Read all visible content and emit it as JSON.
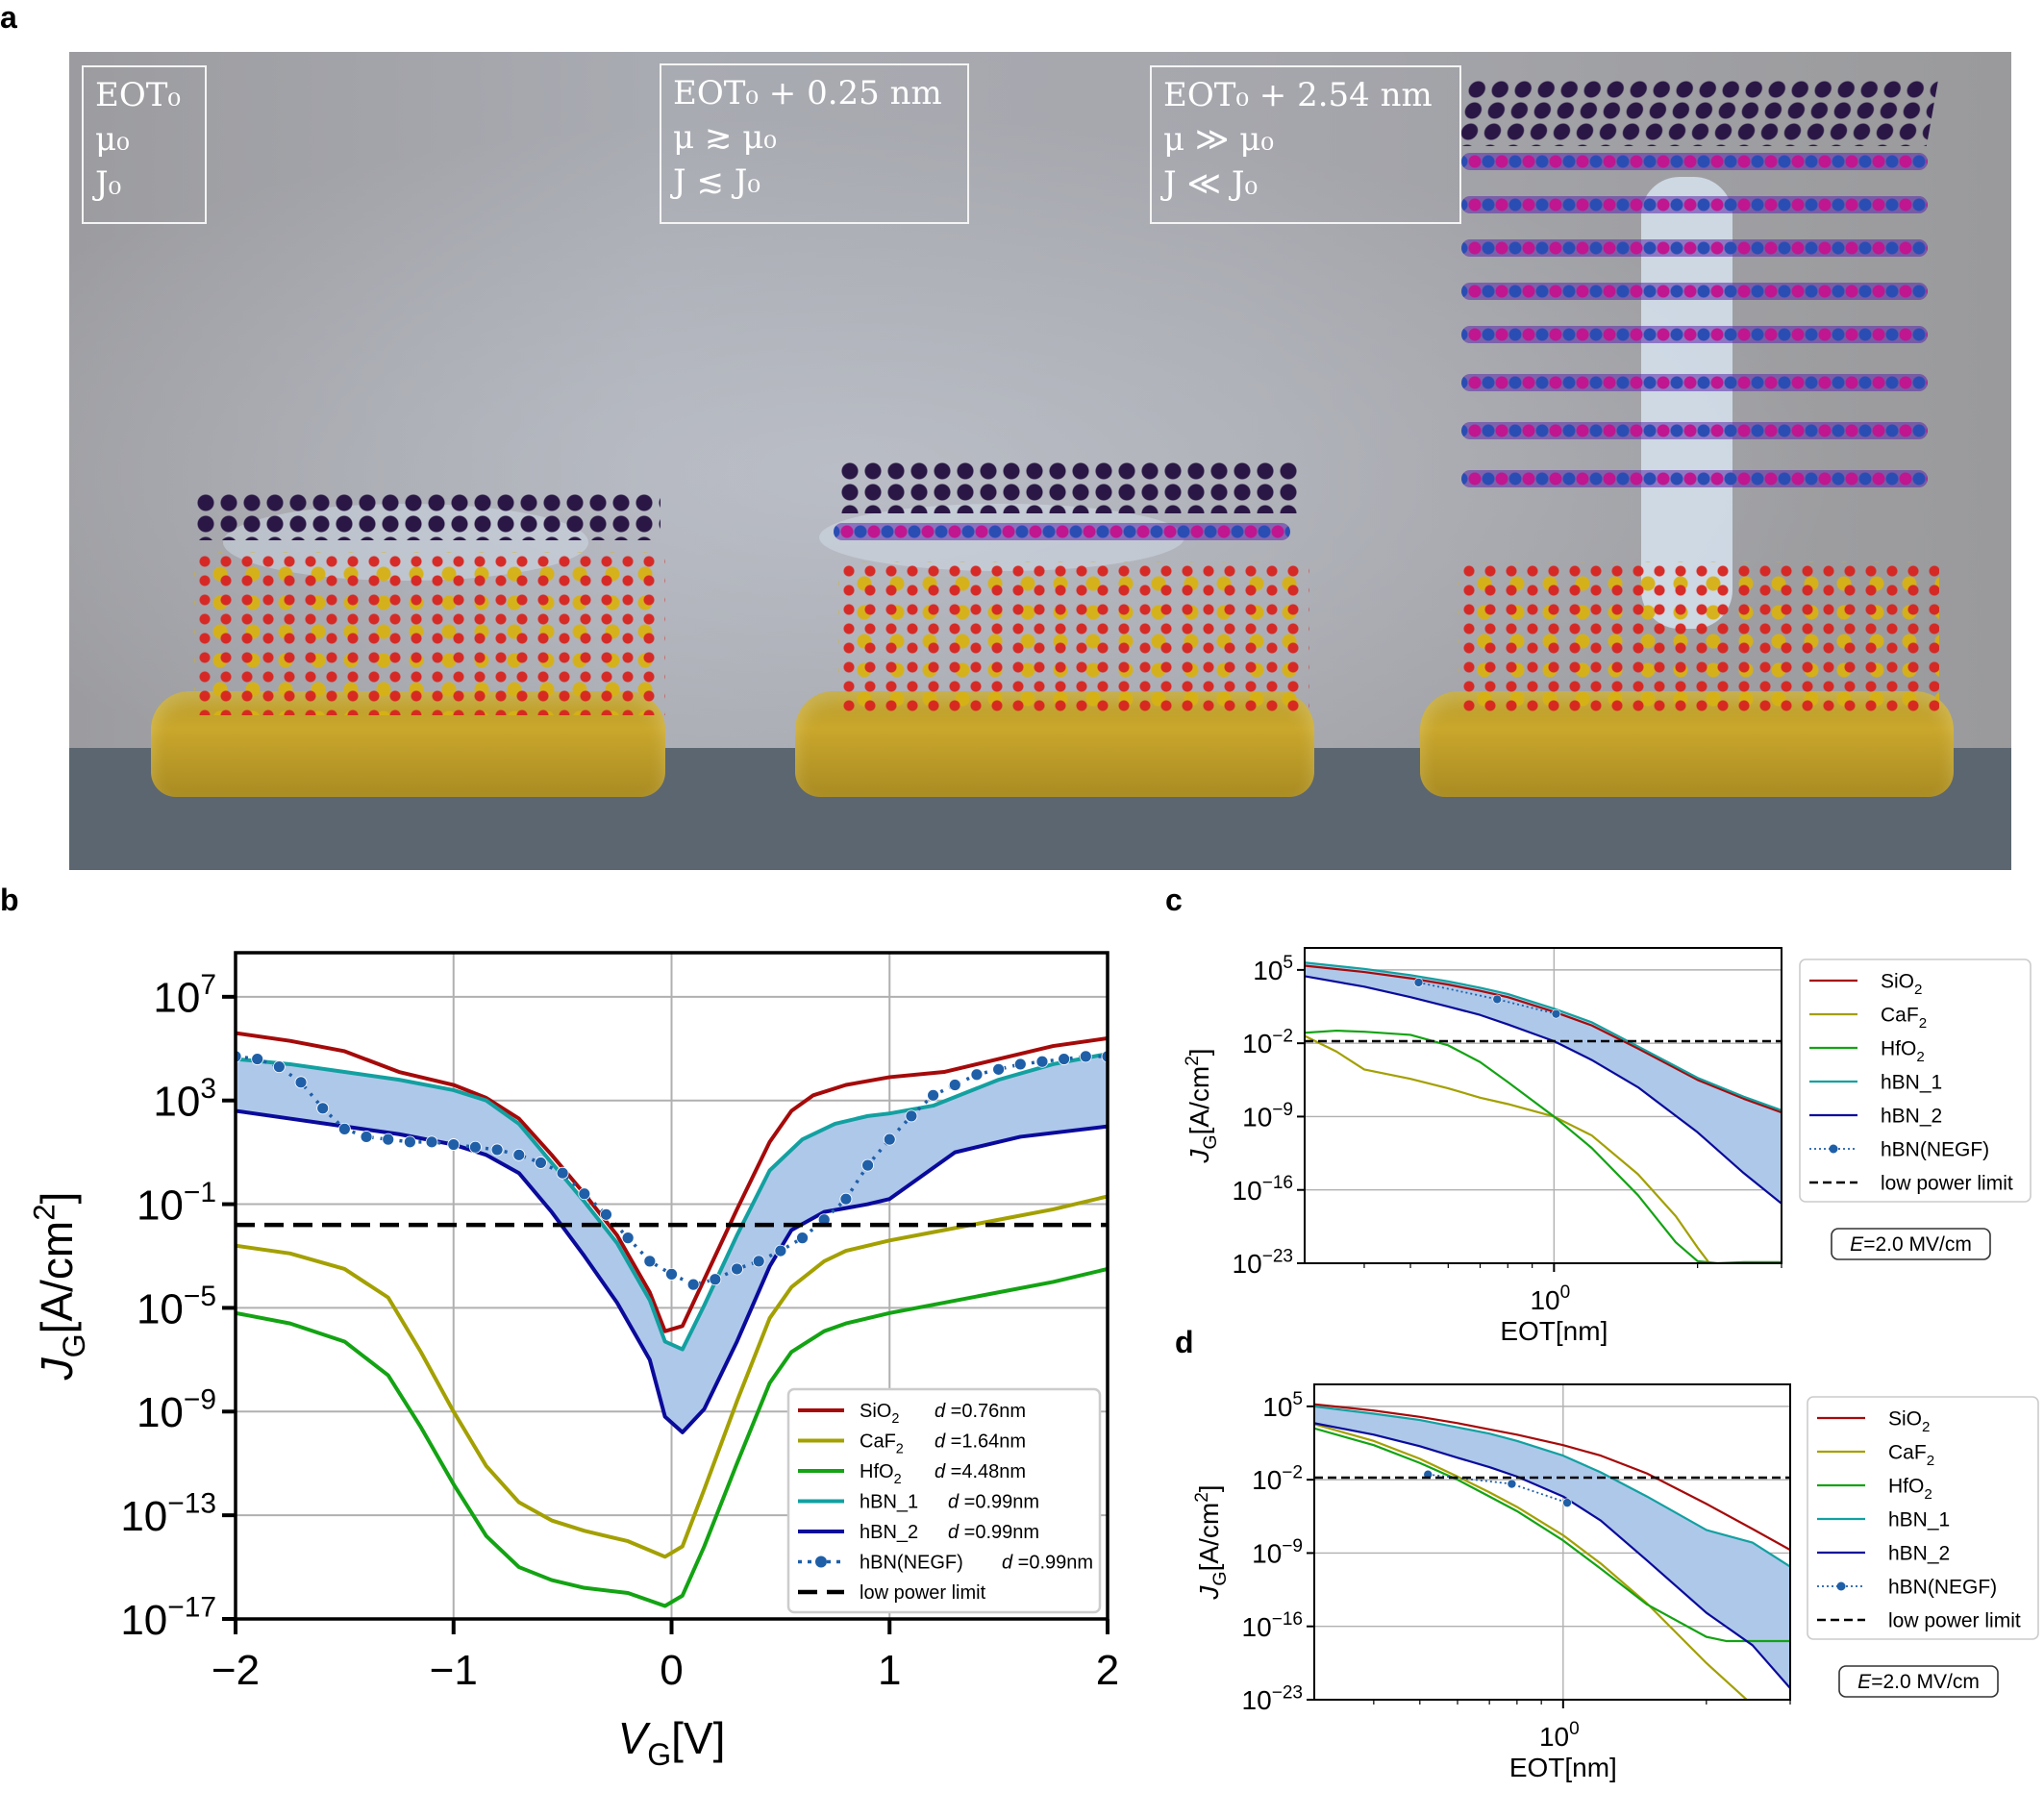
{
  "figure": {
    "panel_labels": [
      "a",
      "b",
      "c",
      "d"
    ]
  },
  "panel_a": {
    "boxes": [
      {
        "line1": "EOT₀",
        "line2": "μ₀",
        "line3": "J₀"
      },
      {
        "line1": "EOT₀ + 0.25 nm",
        "line2": "μ ≳ μ₀",
        "line3": "J ≲ J₀"
      },
      {
        "line1": "EOT₀ + 2.54 nm",
        "line2": "μ ≫ μ₀",
        "line3": "J ≪ J₀"
      }
    ],
    "stacks": [
      {
        "name": "graphene-on-sio2",
        "hbn_layers": 0
      },
      {
        "name": "graphene-hbn1-on-sio2",
        "hbn_layers": 1
      },
      {
        "name": "graphene-hbn8-on-sio2",
        "hbn_layers": 8
      }
    ]
  },
  "colors": {
    "SiO2": "#a50a0a",
    "CaF2": "#a3a000",
    "HfO2": "#13a313",
    "hBN_1": "#13a0a0",
    "hBN_2": "#0a0a9b",
    "NEGF": "#1f5fa8",
    "fill": "#aec8ea",
    "limit": "#000000",
    "grid": "#b0b0b0"
  },
  "chart_data": [
    {
      "id": "b",
      "type": "line",
      "xlabel": "V_G[V]",
      "ylabel": "J_G[A/cm^2]",
      "xlim": [
        -2,
        2
      ],
      "ylim_log10": [
        -17,
        8.7
      ],
      "yscale": "log",
      "grid": true,
      "x_ticks": [
        -2,
        -1,
        0,
        1,
        2
      ],
      "x_tick_labels": [
        "−2",
        "−1",
        "0",
        "1",
        "2"
      ],
      "y_ticks_log10": [
        7,
        3,
        -1,
        -5,
        -9,
        -13,
        -17
      ],
      "y_tick_labels": [
        [
          "10",
          "7"
        ],
        [
          "10",
          "3"
        ],
        [
          "10",
          "−1"
        ],
        [
          "10",
          "−5"
        ],
        [
          "10",
          "−9"
        ],
        [
          "10",
          "−13"
        ],
        [
          "10",
          "−17"
        ]
      ],
      "legend_position": "lower-right",
      "fill_between": [
        "hBN_1",
        "hBN_2"
      ],
      "series": [
        {
          "key": "SiO2",
          "label": "SiO",
          "sub": "2",
          "d": "d =0.76nm",
          "style": "solid",
          "x": [
            -2,
            -1.75,
            -1.5,
            -1.25,
            -1.0,
            -0.85,
            -0.7,
            -0.55,
            -0.4,
            -0.25,
            -0.1,
            -0.03,
            0.05,
            0.15,
            0.3,
            0.45,
            0.55,
            0.65,
            0.8,
            1.0,
            1.25,
            1.5,
            1.75,
            2.0
          ],
          "log10y": [
            5.6,
            5.3,
            4.9,
            4.1,
            3.6,
            3.1,
            2.3,
            0.9,
            -0.6,
            -2.2,
            -4.4,
            -5.9,
            -5.7,
            -3.9,
            -1.2,
            1.4,
            2.6,
            3.2,
            3.6,
            3.9,
            4.1,
            4.6,
            5.1,
            5.4
          ]
        },
        {
          "key": "CaF2",
          "label": "CaF",
          "sub": "2",
          "d": "d =1.64nm",
          "style": "solid",
          "x": [
            -2,
            -1.75,
            -1.5,
            -1.3,
            -1.15,
            -1.0,
            -0.85,
            -0.7,
            -0.55,
            -0.4,
            -0.2,
            -0.03,
            0.05,
            0.15,
            0.3,
            0.45,
            0.55,
            0.7,
            0.8,
            1.0,
            1.25,
            1.5,
            1.75,
            2.0
          ],
          "log10y": [
            -2.6,
            -2.9,
            -3.5,
            -4.6,
            -6.7,
            -9.0,
            -11.1,
            -12.5,
            -13.2,
            -13.6,
            -14.0,
            -14.6,
            -14.2,
            -12.0,
            -8.6,
            -5.4,
            -4.2,
            -3.2,
            -2.8,
            -2.4,
            -2.0,
            -1.6,
            -1.2,
            -0.7
          ]
        },
        {
          "key": "HfO2",
          "label": "HfO",
          "sub": "2",
          "d": "d =4.48nm",
          "style": "solid",
          "x": [
            -2,
            -1.75,
            -1.5,
            -1.3,
            -1.15,
            -1.0,
            -0.85,
            -0.7,
            -0.55,
            -0.4,
            -0.2,
            -0.03,
            0.05,
            0.15,
            0.3,
            0.45,
            0.55,
            0.7,
            0.8,
            1.0,
            1.25,
            1.5,
            1.75,
            2.0
          ],
          "log10y": [
            -5.2,
            -5.6,
            -6.3,
            -7.6,
            -9.6,
            -11.8,
            -13.8,
            -15.0,
            -15.5,
            -15.8,
            -16.0,
            -16.5,
            -16.1,
            -14.2,
            -11.0,
            -7.9,
            -6.7,
            -5.9,
            -5.6,
            -5.2,
            -4.8,
            -4.4,
            -4.0,
            -3.5
          ]
        },
        {
          "key": "hBN_1",
          "label": "hBN_1",
          "sub": "",
          "d": "d =0.99nm",
          "style": "solid",
          "x": [
            -2,
            -1.75,
            -1.5,
            -1.25,
            -1.0,
            -0.85,
            -0.7,
            -0.55,
            -0.4,
            -0.25,
            -0.1,
            -0.03,
            0.05,
            0.15,
            0.3,
            0.45,
            0.6,
            0.75,
            0.9,
            1.0,
            1.2,
            1.5,
            1.75,
            2.0
          ],
          "log10y": [
            4.6,
            4.4,
            4.1,
            3.8,
            3.4,
            3.0,
            2.1,
            0.6,
            -0.9,
            -2.5,
            -4.7,
            -6.3,
            -6.6,
            -4.9,
            -2.2,
            0.3,
            1.5,
            2.1,
            2.4,
            2.5,
            2.8,
            3.8,
            4.4,
            4.8
          ]
        },
        {
          "key": "hBN_2",
          "label": "hBN_2",
          "sub": "",
          "d": "d =0.99nm",
          "style": "solid",
          "x": [
            -2,
            -1.75,
            -1.5,
            -1.25,
            -1.0,
            -0.85,
            -0.7,
            -0.55,
            -0.4,
            -0.25,
            -0.1,
            -0.03,
            0.05,
            0.15,
            0.3,
            0.45,
            0.55,
            0.7,
            0.9,
            1.0,
            1.1,
            1.3,
            1.6,
            2.0
          ],
          "log10y": [
            2.6,
            2.3,
            2.0,
            1.7,
            1.3,
            0.9,
            0.2,
            -1.3,
            -3.0,
            -4.8,
            -7.0,
            -9.2,
            -9.8,
            -8.9,
            -6.3,
            -3.4,
            -2.0,
            -1.3,
            -1.0,
            -0.8,
            -0.2,
            1.0,
            1.6,
            2.0
          ]
        },
        {
          "key": "NEGF",
          "label": "hBN(NEGF)",
          "sub": "",
          "d": "d =0.99nm",
          "style": "dotted-markers",
          "x": [
            -2,
            -1.9,
            -1.8,
            -1.7,
            -1.6,
            -1.5,
            -1.4,
            -1.3,
            -1.2,
            -1.1,
            -1.0,
            -0.9,
            -0.8,
            -0.7,
            -0.6,
            -0.5,
            -0.4,
            -0.3,
            -0.2,
            -0.1,
            0.0,
            0.1,
            0.2,
            0.3,
            0.4,
            0.5,
            0.6,
            0.7,
            0.8,
            0.9,
            1.0,
            1.1,
            1.2,
            1.3,
            1.4,
            1.5,
            1.6,
            1.7,
            1.8,
            1.9,
            2.0
          ],
          "log10y": [
            4.7,
            4.6,
            4.3,
            3.7,
            2.7,
            1.9,
            1.6,
            1.5,
            1.4,
            1.4,
            1.3,
            1.2,
            1.1,
            0.9,
            0.6,
            0.2,
            -0.6,
            -1.4,
            -2.3,
            -3.2,
            -3.7,
            -4.1,
            -3.9,
            -3.5,
            -3.2,
            -2.8,
            -2.3,
            -1.6,
            -0.8,
            0.5,
            1.5,
            2.4,
            3.2,
            3.6,
            4.0,
            4.2,
            4.4,
            4.5,
            4.6,
            4.7,
            4.7
          ]
        },
        {
          "key": "limit",
          "label": "low power limit",
          "sub": "",
          "d": "",
          "style": "dashed",
          "x": [
            -2,
            2
          ],
          "log10y": [
            -1.8,
            -1.8
          ]
        }
      ]
    },
    {
      "id": "c",
      "type": "line",
      "xlabel": "EOT[nm]",
      "ylabel": "J_G[A/cm^2]",
      "xscale": "log",
      "xlim": [
        0.3,
        3.0
      ],
      "x_ticks": [
        1
      ],
      "x_tick_labels": [
        [
          "10",
          "0"
        ]
      ],
      "x_minor_ticks": [
        0.4,
        0.5,
        0.6,
        0.7,
        0.8,
        0.9,
        2,
        3
      ],
      "yscale": "log",
      "ylim_log10": [
        -23,
        7.1
      ],
      "y_ticks_log10": [
        5,
        -2,
        -9,
        -16,
        -23
      ],
      "y_tick_labels": [
        [
          "10",
          "5"
        ],
        [
          "10",
          "−2"
        ],
        [
          "10",
          "−9"
        ],
        [
          "10",
          "−16"
        ],
        [
          "10",
          "−23"
        ]
      ],
      "grid": true,
      "legend_position": "outside-right",
      "annotation": "E=2.0 MV/cm",
      "fill_between": [
        "hBN_1",
        "hBN_2"
      ],
      "series": [
        {
          "key": "SiO2",
          "label": "SiO",
          "sub": "2",
          "x": [
            0.3,
            0.4,
            0.5,
            0.6,
            0.7,
            0.8,
            1.0,
            1.2,
            1.5,
            2.0,
            2.5,
            3.0
          ],
          "log10y": [
            5.4,
            4.8,
            4.2,
            3.6,
            3.0,
            2.4,
            1.0,
            -0.3,
            -2.5,
            -5.5,
            -7.3,
            -8.6
          ]
        },
        {
          "key": "CaF2",
          "label": "CaF",
          "sub": "2",
          "x": [
            0.3,
            0.35,
            0.4,
            0.5,
            0.6,
            0.7,
            0.8,
            1.0,
            1.2,
            1.5,
            1.8,
            2.0,
            2.2
          ],
          "log10y": [
            -1.3,
            -2.8,
            -4.5,
            -5.4,
            -6.3,
            -7.2,
            -7.8,
            -9.0,
            -10.8,
            -14.5,
            -18.5,
            -21.5,
            -24
          ]
        },
        {
          "key": "HfO2",
          "label": "HfO",
          "sub": "2",
          "x": [
            0.3,
            0.35,
            0.4,
            0.5,
            0.6,
            0.7,
            0.8,
            1.0,
            1.2,
            1.5,
            1.8,
            2.0,
            2.2,
            2.5,
            3.0
          ],
          "log10y": [
            -1.0,
            -0.8,
            -0.9,
            -1.2,
            -2.2,
            -3.8,
            -5.7,
            -9.0,
            -12.0,
            -16.5,
            -21.0,
            -22.8,
            -23.0,
            -22.9,
            -22.9
          ]
        },
        {
          "key": "hBN_1",
          "label": "hBN_1",
          "sub": "",
          "x": [
            0.3,
            0.4,
            0.5,
            0.6,
            0.7,
            0.8,
            1.0,
            1.2,
            1.5,
            2.0,
            2.5,
            3.0
          ],
          "log10y": [
            5.7,
            5.1,
            4.5,
            3.9,
            3.3,
            2.7,
            1.3,
            0.0,
            -2.3,
            -5.3,
            -7.1,
            -8.4
          ]
        },
        {
          "key": "hBN_2",
          "label": "hBN_2",
          "sub": "",
          "x": [
            0.3,
            0.4,
            0.5,
            0.6,
            0.7,
            0.8,
            1.0,
            1.2,
            1.5,
            2.0,
            2.5,
            3.0
          ],
          "log10y": [
            4.4,
            3.4,
            2.4,
            1.5,
            0.7,
            -0.2,
            -1.8,
            -3.6,
            -6.2,
            -10.5,
            -14.4,
            -17.3
          ]
        },
        {
          "key": "NEGF",
          "label": "hBN(NEGF)",
          "sub": "",
          "x": [
            0.52,
            0.76,
            1.01
          ],
          "log10y": [
            3.8,
            2.2,
            0.8
          ]
        },
        {
          "key": "limit",
          "label": "low power limit",
          "sub": "",
          "x": [
            0.3,
            3.0
          ],
          "log10y": [
            -1.8,
            -1.8
          ]
        }
      ]
    },
    {
      "id": "d",
      "type": "line",
      "xlabel": "EOT[nm]",
      "ylabel": "J_G[A/cm^2]",
      "xscale": "log",
      "xlim": [
        0.3,
        3.0
      ],
      "x_ticks": [
        1
      ],
      "x_tick_labels": [
        [
          "10",
          "0"
        ]
      ],
      "x_minor_ticks": [
        0.4,
        0.5,
        0.6,
        0.7,
        0.8,
        0.9,
        2,
        3
      ],
      "yscale": "log",
      "ylim_log10": [
        -23,
        7.1
      ],
      "y_ticks_log10": [
        5,
        -2,
        -9,
        -16,
        -23
      ],
      "y_tick_labels": [
        [
          "10",
          "5"
        ],
        [
          "10",
          "−2"
        ],
        [
          "10",
          "−9"
        ],
        [
          "10",
          "−16"
        ],
        [
          "10",
          "−23"
        ]
      ],
      "grid": true,
      "legend_position": "outside-right",
      "annotation": "E=2.0 MV/cm",
      "fill_between": [
        "hBN_1",
        "hBN_2"
      ],
      "series": [
        {
          "key": "SiO2",
          "label": "SiO",
          "sub": "2",
          "x": [
            0.3,
            0.4,
            0.5,
            0.6,
            0.7,
            0.8,
            1.0,
            1.2,
            1.5,
            2.0,
            2.5,
            3.0
          ],
          "log10y": [
            5.2,
            4.6,
            4.0,
            3.4,
            2.8,
            2.3,
            1.3,
            0.3,
            -1.4,
            -4.3,
            -6.7,
            -8.7
          ]
        },
        {
          "key": "CaF2",
          "label": "CaF",
          "sub": "2",
          "x": [
            0.3,
            0.4,
            0.5,
            0.6,
            0.7,
            0.8,
            1.0,
            1.2,
            1.5,
            2.0,
            2.5
          ],
          "log10y": [
            3.3,
            1.7,
            0.0,
            -1.7,
            -3.2,
            -4.6,
            -7.3,
            -10.0,
            -13.8,
            -19.5,
            -23.5
          ]
        },
        {
          "key": "HfO2",
          "label": "HfO",
          "sub": "2",
          "x": [
            0.3,
            0.4,
            0.5,
            0.6,
            0.7,
            0.8,
            1.0,
            1.2,
            1.5,
            2.0,
            2.2,
            2.5,
            3.0
          ],
          "log10y": [
            2.9,
            1.3,
            -0.4,
            -2.0,
            -3.6,
            -5.0,
            -7.8,
            -10.5,
            -13.9,
            -17.0,
            -17.4,
            -17.4,
            -17.4
          ]
        },
        {
          "key": "hBN_1",
          "label": "hBN_1",
          "sub": "",
          "x": [
            0.3,
            0.4,
            0.5,
            0.6,
            0.7,
            0.8,
            1.0,
            1.2,
            1.5,
            2.0,
            2.5,
            3.0
          ],
          "log10y": [
            5.0,
            4.3,
            3.7,
            3.0,
            2.4,
            1.7,
            0.3,
            -1.3,
            -3.6,
            -6.8,
            -8.0,
            -10.3
          ]
        },
        {
          "key": "hBN_2",
          "label": "hBN_2",
          "sub": "",
          "x": [
            0.3,
            0.4,
            0.5,
            0.6,
            0.7,
            0.8,
            1.0,
            1.2,
            1.5,
            2.0,
            2.5,
            3.0
          ],
          "log10y": [
            3.4,
            2.3,
            1.2,
            0.1,
            -0.8,
            -1.7,
            -3.6,
            -5.9,
            -9.7,
            -14.7,
            -17.8,
            -21.9
          ]
        },
        {
          "key": "NEGF",
          "label": "hBN(NEGF)",
          "sub": "",
          "x": [
            0.52,
            0.78,
            1.02
          ],
          "log10y": [
            -1.5,
            -2.4,
            -4.2
          ]
        },
        {
          "key": "limit",
          "label": "low power limit",
          "sub": "",
          "x": [
            0.3,
            3.0
          ],
          "log10y": [
            -1.8,
            -1.8
          ]
        }
      ]
    }
  ]
}
